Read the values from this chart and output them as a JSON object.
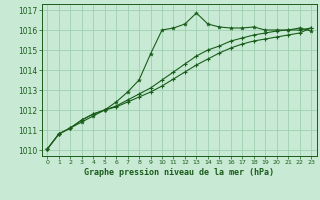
{
  "title": "Graphe pression niveau de la mer (hPa)",
  "background_color": "#c8ead5",
  "grid_color": "#9ecfb0",
  "line_color": "#1a5c1a",
  "ylim": [
    1009.7,
    1017.3
  ],
  "xlim": [
    -0.5,
    23.5
  ],
  "yticks": [
    1010,
    1011,
    1012,
    1013,
    1014,
    1015,
    1016,
    1017
  ],
  "xticks": [
    0,
    1,
    2,
    3,
    4,
    5,
    6,
    7,
    8,
    9,
    10,
    11,
    12,
    13,
    14,
    15,
    16,
    17,
    18,
    19,
    20,
    21,
    22,
    23
  ],
  "line1_x": [
    0,
    1,
    2,
    3,
    4,
    5,
    6,
    7,
    8,
    9,
    10,
    11,
    12,
    13,
    14,
    15,
    16,
    17,
    18,
    19,
    20,
    21,
    22,
    23
  ],
  "line1_y": [
    1010.05,
    1010.8,
    1011.1,
    1011.4,
    1011.7,
    1012.0,
    1012.4,
    1012.9,
    1013.5,
    1014.8,
    1016.0,
    1016.1,
    1016.3,
    1016.85,
    1016.3,
    1016.15,
    1016.1,
    1016.1,
    1016.15,
    1016.0,
    1016.0,
    1016.0,
    1016.1,
    1015.95
  ],
  "line2_x": [
    0,
    1,
    2,
    3,
    4,
    5,
    6,
    7,
    8,
    9,
    10,
    11,
    12,
    13,
    14,
    15,
    16,
    17,
    18,
    19,
    20,
    21,
    22,
    23
  ],
  "line2_y": [
    1010.05,
    1010.8,
    1011.1,
    1011.5,
    1011.8,
    1012.0,
    1012.2,
    1012.5,
    1012.8,
    1013.1,
    1013.5,
    1013.9,
    1014.3,
    1014.7,
    1015.0,
    1015.2,
    1015.45,
    1015.6,
    1015.75,
    1015.85,
    1015.95,
    1016.0,
    1016.0,
    1016.1
  ],
  "line3_x": [
    0,
    1,
    2,
    3,
    4,
    5,
    6,
    7,
    8,
    9,
    10,
    11,
    12,
    13,
    14,
    15,
    16,
    17,
    18,
    19,
    20,
    21,
    22,
    23
  ],
  "line3_y": [
    1010.05,
    1010.8,
    1011.1,
    1011.5,
    1011.8,
    1012.0,
    1012.15,
    1012.4,
    1012.65,
    1012.9,
    1013.2,
    1013.55,
    1013.9,
    1014.25,
    1014.55,
    1014.85,
    1015.1,
    1015.3,
    1015.45,
    1015.55,
    1015.65,
    1015.75,
    1015.85,
    1016.1
  ]
}
